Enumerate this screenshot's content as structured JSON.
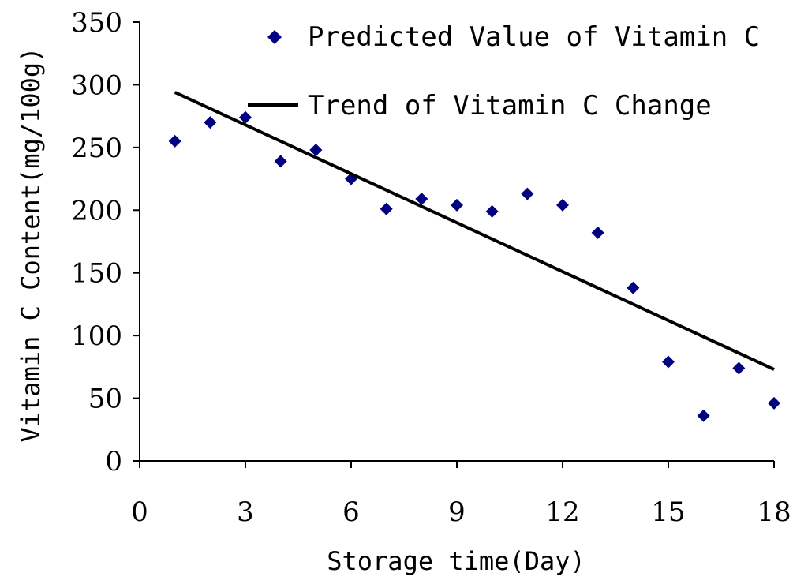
{
  "chart_data": {
    "type": "scatter",
    "title": "",
    "xlabel": "Storage time(Day)",
    "ylabel": "Vitamin C Content(mg/100g)",
    "xlim": [
      0,
      18
    ],
    "ylim": [
      0,
      350
    ],
    "x_ticks": [
      0,
      3,
      6,
      9,
      12,
      15,
      18
    ],
    "y_ticks": [
      0,
      50,
      100,
      150,
      200,
      250,
      300,
      350
    ],
    "grid": false,
    "legend_position": "top-right",
    "series": [
      {
        "name": "Predicted Value of Vitamin C",
        "type": "scatter",
        "marker": "diamond",
        "color": "#000080",
        "x": [
          1,
          2,
          3,
          4,
          5,
          6,
          7,
          8,
          9,
          10,
          11,
          12,
          13,
          14,
          15,
          16,
          17,
          18
        ],
        "y": [
          255,
          270,
          274,
          239,
          248,
          225,
          201,
          209,
          204,
          199,
          213,
          204,
          182,
          138,
          79,
          36,
          74,
          46
        ]
      },
      {
        "name": "Trend of Vitamin C Change",
        "type": "line",
        "color": "#000000",
        "x": [
          1,
          18
        ],
        "y": [
          294,
          73
        ]
      }
    ]
  }
}
